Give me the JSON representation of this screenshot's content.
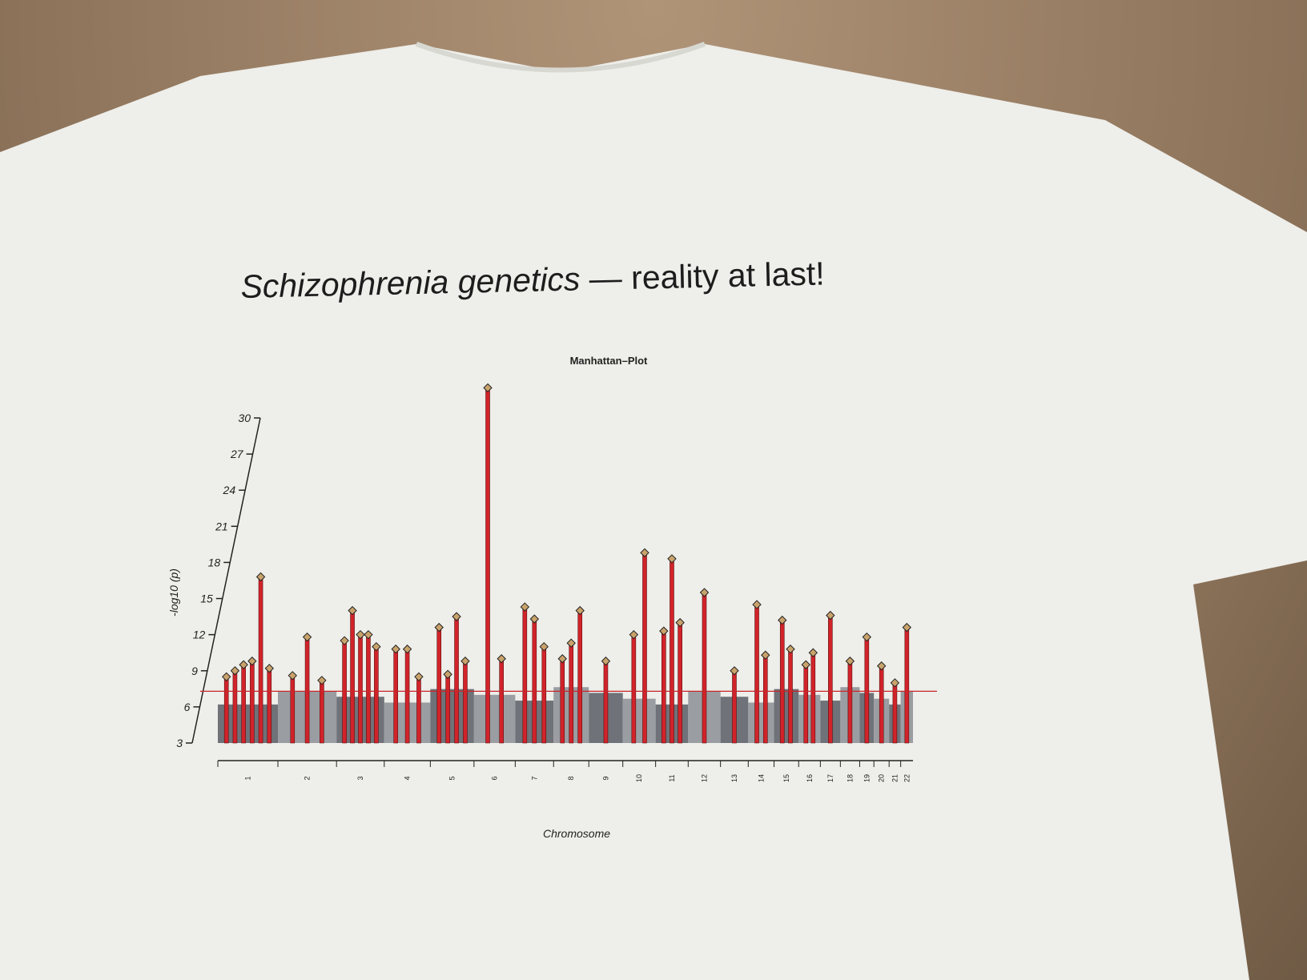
{
  "shirt_text": {
    "title_italic": "Schizophrenia genetics",
    "title_rest": " — reality at last!"
  },
  "colors": {
    "background": "#8b7259",
    "shirt": "#eeeeea",
    "hits": "#d2232a",
    "gray_dark": "#6f7278",
    "gray_light": "#9a9da2",
    "threshold": "#c8262b"
  },
  "chart_data": {
    "type": "scatter",
    "title": "Manhattan–Plot",
    "xlabel": "Chromosome",
    "ylabel": "-log10 (p)",
    "ylim": [
      3,
      30
    ],
    "yticks": [
      "3",
      "6",
      "9",
      "12",
      "15",
      "18",
      "21",
      "24",
      "27",
      "30"
    ],
    "categories": [
      "1",
      "2",
      "3",
      "4",
      "5",
      "6",
      "7",
      "8",
      "9",
      "10",
      "11",
      "12",
      "13",
      "14",
      "15",
      "16",
      "17",
      "18",
      "19",
      "20",
      "21",
      "22"
    ],
    "threshold": 7.3,
    "peaks": [
      {
        "chr": "1",
        "values": [
          8.5,
          9.0,
          9.5,
          9.8,
          16.8,
          9.2
        ]
      },
      {
        "chr": "2",
        "values": [
          8.6,
          11.8,
          8.2
        ]
      },
      {
        "chr": "3",
        "values": [
          11.5,
          14.0,
          12.0,
          12.0,
          11.0
        ]
      },
      {
        "chr": "4",
        "values": [
          10.8,
          10.8,
          8.5
        ]
      },
      {
        "chr": "5",
        "values": [
          12.6,
          8.7,
          13.5,
          9.8
        ]
      },
      {
        "chr": "6",
        "values": [
          32.5,
          10.0
        ]
      },
      {
        "chr": "7",
        "values": [
          14.3,
          13.3,
          11.0
        ]
      },
      {
        "chr": "8",
        "values": [
          10.0,
          11.3,
          14.0
        ]
      },
      {
        "chr": "9",
        "values": [
          9.8
        ]
      },
      {
        "chr": "10",
        "values": [
          12.0,
          18.8
        ]
      },
      {
        "chr": "11",
        "values": [
          12.3,
          18.3,
          13.0
        ]
      },
      {
        "chr": "12",
        "values": [
          15.5
        ]
      },
      {
        "chr": "13",
        "values": [
          9.0
        ]
      },
      {
        "chr": "14",
        "values": [
          14.5,
          10.3
        ]
      },
      {
        "chr": "15",
        "values": [
          13.2,
          10.8
        ]
      },
      {
        "chr": "16",
        "values": [
          9.5,
          10.5
        ]
      },
      {
        "chr": "17",
        "values": [
          13.6
        ]
      },
      {
        "chr": "18",
        "values": [
          9.8
        ]
      },
      {
        "chr": "19",
        "values": [
          11.8
        ]
      },
      {
        "chr": "20",
        "values": [
          9.4
        ]
      },
      {
        "chr": "21",
        "values": [
          8.0
        ]
      },
      {
        "chr": "22",
        "values": [
          12.6
        ]
      }
    ]
  }
}
